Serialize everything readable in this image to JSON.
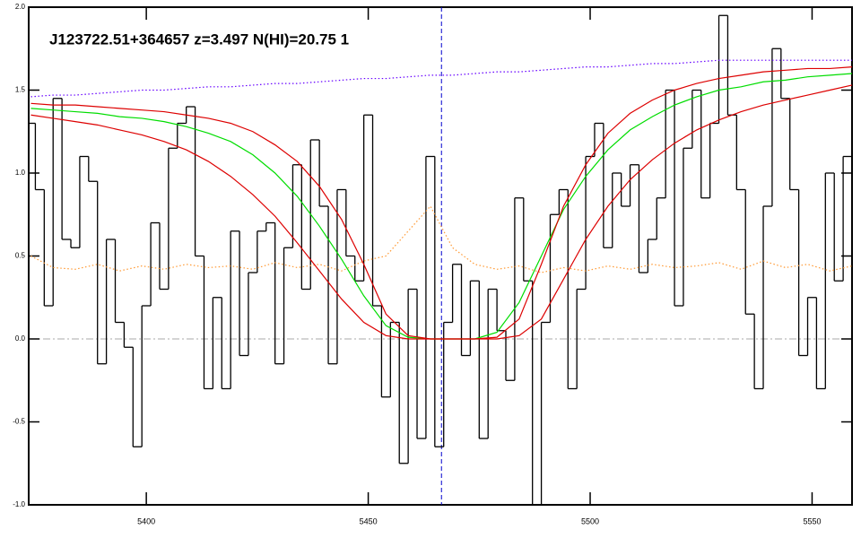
{
  "chart_data": {
    "type": "line",
    "title": "J123722.51+364657 z=3.497 N(HI)=20.75 1",
    "xlim": [
      5373.5,
      5559
    ],
    "ylim": [
      -1,
      2
    ],
    "xticks": [
      5400,
      5450,
      5500,
      5550
    ],
    "yticks": [
      {
        "value": -1,
        "label": "-1.0"
      },
      -0.5,
      {
        "value": 0,
        "label": "0.0"
      },
      0.5,
      {
        "value": 1,
        "label": "1.0"
      },
      1.5,
      {
        "value": 2,
        "label": "2.0"
      }
    ],
    "vline": {
      "x": 5466.5,
      "color": "#0000cc"
    },
    "hline": {
      "y": 0,
      "color": "#aaaaaa"
    },
    "series": [
      {
        "style": "step",
        "color": "#000000",
        "x": [
          5374,
          5376,
          5378,
          5380,
          5382,
          5384,
          5386,
          5388,
          5390,
          5392,
          5394,
          5396,
          5398,
          5400,
          5402,
          5404,
          5406,
          5408,
          5410,
          5412,
          5414,
          5416,
          5418,
          5420,
          5422,
          5424,
          5426,
          5428,
          5430,
          5432,
          5434,
          5436,
          5438,
          5440,
          5442,
          5444,
          5446,
          5448,
          5450,
          5452,
          5454,
          5456,
          5458,
          5460,
          5462,
          5464,
          5466,
          5468,
          5470,
          5472,
          5474,
          5476,
          5478,
          5480,
          5482,
          5484,
          5486,
          5488,
          5490,
          5492,
          5494,
          5496,
          5498,
          5500,
          5502,
          5504,
          5506,
          5508,
          5510,
          5512,
          5514,
          5516,
          5518,
          5520,
          5522,
          5524,
          5526,
          5528,
          5530,
          5532,
          5534,
          5536,
          5538,
          5540,
          5542,
          5544,
          5546,
          5548,
          5550,
          5552,
          5554,
          5556,
          5558
        ],
        "values": [
          1.3,
          0.9,
          0.2,
          1.45,
          0.6,
          0.55,
          1.1,
          0.95,
          -0.15,
          0.6,
          0.1,
          -0.05,
          -0.65,
          0.2,
          0.7,
          0.3,
          1.15,
          1.3,
          1.4,
          0.5,
          -0.3,
          0.25,
          -0.3,
          0.65,
          -0.1,
          0.4,
          0.65,
          0.7,
          -0.15,
          0.55,
          1.05,
          0.3,
          1.2,
          0.8,
          -0.15,
          0.9,
          0.5,
          0.35,
          1.35,
          0.2,
          -0.35,
          0.1,
          -0.75,
          0.3,
          -0.6,
          1.1,
          -0.65,
          0.1,
          0.45,
          -0.1,
          0.35,
          -0.6,
          0.3,
          0.05,
          -0.25,
          0.85,
          0.35,
          -1.0,
          0.1,
          0.75,
          0.9,
          -0.3,
          0.3,
          1.1,
          1.3,
          0.55,
          1.0,
          0.8,
          1.05,
          0.4,
          0.6,
          0.85,
          1.5,
          0.2,
          1.15,
          1.5,
          0.85,
          1.3,
          1.95,
          1.35,
          0.9,
          0.15,
          -0.3,
          0.8,
          1.75,
          1.45,
          0.9,
          -0.1,
          0.25,
          -0.3,
          1.0,
          0.35,
          1.1
        ]
      },
      {
        "style": "dotted",
        "color": "#ff9933",
        "x": [
          5374,
          5379,
          5384,
          5389,
          5394,
          5399,
          5404,
          5409,
          5414,
          5419,
          5424,
          5429,
          5434,
          5439,
          5444,
          5449,
          5454,
          5459,
          5464,
          5469,
          5474,
          5479,
          5484,
          5489,
          5494,
          5499,
          5504,
          5509,
          5514,
          5519,
          5524,
          5529,
          5534,
          5539,
          5544,
          5549,
          5554,
          5559
        ],
        "values": [
          0.5,
          0.43,
          0.42,
          0.45,
          0.41,
          0.44,
          0.42,
          0.45,
          0.43,
          0.44,
          0.42,
          0.46,
          0.43,
          0.45,
          0.41,
          0.47,
          0.5,
          0.65,
          0.8,
          0.55,
          0.45,
          0.42,
          0.44,
          0.4,
          0.43,
          0.41,
          0.44,
          0.42,
          0.45,
          0.43,
          0.44,
          0.46,
          0.42,
          0.47,
          0.43,
          0.45,
          0.41,
          0.44
        ]
      },
      {
        "style": "dotted",
        "color": "#6600ff",
        "x": [
          5374,
          5379,
          5384,
          5389,
          5394,
          5399,
          5404,
          5409,
          5414,
          5419,
          5424,
          5429,
          5434,
          5439,
          5444,
          5449,
          5454,
          5459,
          5464,
          5469,
          5474,
          5479,
          5484,
          5489,
          5494,
          5499,
          5504,
          5509,
          5514,
          5519,
          5524,
          5529,
          5534,
          5539,
          5544,
          5549,
          5554,
          5559
        ],
        "values": [
          1.46,
          1.47,
          1.47,
          1.48,
          1.49,
          1.5,
          1.5,
          1.51,
          1.52,
          1.52,
          1.53,
          1.54,
          1.54,
          1.55,
          1.56,
          1.57,
          1.57,
          1.58,
          1.59,
          1.59,
          1.6,
          1.61,
          1.61,
          1.62,
          1.63,
          1.64,
          1.64,
          1.65,
          1.66,
          1.66,
          1.67,
          1.68,
          1.68,
          1.68,
          1.68,
          1.68,
          1.68,
          1.68
        ]
      },
      {
        "style": "solid",
        "color": "#00dd00",
        "x": [
          5374,
          5379,
          5384,
          5389,
          5394,
          5399,
          5404,
          5409,
          5414,
          5419,
          5424,
          5429,
          5434,
          5439,
          5444,
          5449,
          5454,
          5459,
          5464,
          5469,
          5474,
          5479,
          5484,
          5489,
          5494,
          5499,
          5504,
          5509,
          5514,
          5519,
          5524,
          5529,
          5534,
          5539,
          5544,
          5549,
          5554,
          5559
        ],
        "values": [
          1.39,
          1.38,
          1.37,
          1.36,
          1.34,
          1.33,
          1.31,
          1.28,
          1.24,
          1.19,
          1.11,
          1.0,
          0.86,
          0.68,
          0.48,
          0.26,
          0.08,
          0.01,
          0.0,
          0.0,
          0.0,
          0.04,
          0.22,
          0.5,
          0.78,
          0.98,
          1.14,
          1.26,
          1.34,
          1.41,
          1.46,
          1.5,
          1.52,
          1.55,
          1.56,
          1.58,
          1.59,
          1.6
        ]
      },
      {
        "style": "solid",
        "color": "#dd0000",
        "x": [
          5374,
          5379,
          5384,
          5389,
          5394,
          5399,
          5404,
          5409,
          5414,
          5419,
          5424,
          5429,
          5434,
          5439,
          5444,
          5449,
          5454,
          5459,
          5464,
          5469,
          5474,
          5479,
          5484,
          5489,
          5494,
          5499,
          5504,
          5509,
          5514,
          5519,
          5524,
          5529,
          5534,
          5539,
          5544,
          5549,
          5554,
          5559
        ],
        "values": [
          1.42,
          1.41,
          1.41,
          1.4,
          1.39,
          1.38,
          1.37,
          1.35,
          1.33,
          1.3,
          1.25,
          1.17,
          1.07,
          0.92,
          0.72,
          0.45,
          0.15,
          0.02,
          0.0,
          0.0,
          0.0,
          0.01,
          0.12,
          0.45,
          0.8,
          1.05,
          1.24,
          1.36,
          1.44,
          1.5,
          1.54,
          1.57,
          1.59,
          1.61,
          1.62,
          1.63,
          1.63,
          1.64
        ]
      },
      {
        "style": "solid",
        "color": "#dd0000",
        "x": [
          5374,
          5379,
          5384,
          5389,
          5394,
          5399,
          5404,
          5409,
          5414,
          5419,
          5424,
          5429,
          5434,
          5439,
          5444,
          5449,
          5454,
          5459,
          5464,
          5469,
          5474,
          5479,
          5484,
          5489,
          5494,
          5499,
          5504,
          5509,
          5514,
          5519,
          5524,
          5529,
          5534,
          5539,
          5544,
          5549,
          5554,
          5559
        ],
        "values": [
          1.35,
          1.33,
          1.31,
          1.29,
          1.26,
          1.23,
          1.19,
          1.14,
          1.07,
          0.98,
          0.87,
          0.74,
          0.58,
          0.41,
          0.24,
          0.1,
          0.02,
          0.0,
          0.0,
          0.0,
          0.0,
          0.0,
          0.02,
          0.12,
          0.36,
          0.6,
          0.8,
          0.96,
          1.08,
          1.18,
          1.26,
          1.32,
          1.37,
          1.41,
          1.44,
          1.47,
          1.5,
          1.53
        ]
      }
    ]
  }
}
